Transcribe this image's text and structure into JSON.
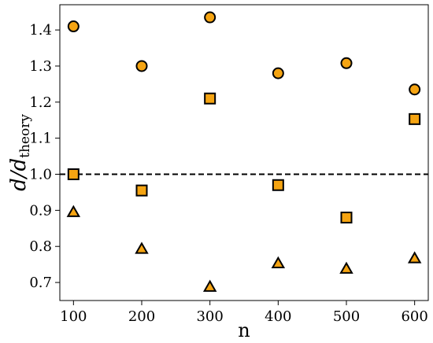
{
  "chart_data": {
    "type": "scatter",
    "title": "",
    "xlabel": "n",
    "ylabel": {
      "main": "d/d",
      "subscript": "theory"
    },
    "xlim": [
      80,
      620
    ],
    "ylim": [
      0.65,
      1.47
    ],
    "x_ticks": [
      100,
      200,
      300,
      400,
      500,
      600
    ],
    "x_tick_labels": [
      "100",
      "200",
      "300",
      "400",
      "500",
      "600"
    ],
    "y_ticks": [
      0.7,
      0.8,
      0.9,
      1.0,
      1.1,
      1.2,
      1.3,
      1.4
    ],
    "y_tick_labels": [
      "0.7",
      "0.8",
      "0.9",
      "1.0",
      "1.1",
      "1.2",
      "1.3",
      "1.4"
    ],
    "reference_line": {
      "y": 1.0,
      "style": "dashed",
      "color": "#000000"
    },
    "grid": false,
    "legend": "none",
    "marker_color": "#F5A412",
    "series": [
      {
        "marker": "circle",
        "x": [
          100,
          200,
          300,
          400,
          500,
          600
        ],
        "y": [
          1.41,
          1.3,
          1.435,
          1.28,
          1.308,
          1.235
        ]
      },
      {
        "marker": "square",
        "x": [
          100,
          200,
          300,
          400,
          500,
          600
        ],
        "y": [
          1.0,
          0.955,
          1.21,
          0.97,
          0.88,
          1.153
        ]
      },
      {
        "marker": "triangle",
        "x": [
          100,
          200,
          300,
          400,
          500,
          600
        ],
        "y": [
          0.895,
          0.793,
          0.688,
          0.753,
          0.738,
          0.767
        ]
      }
    ]
  }
}
